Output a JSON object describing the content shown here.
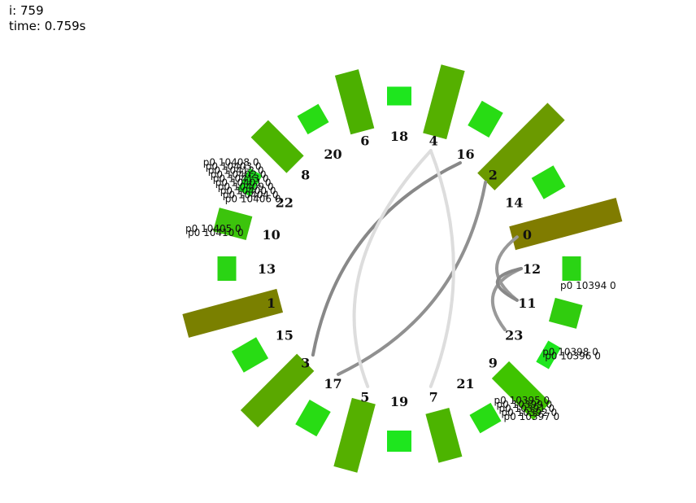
{
  "hud": {
    "iteration_text": "i: 759",
    "time_text": "time: 0.759s"
  },
  "nodes": [
    {
      "id": "18",
      "bar": {
        "level": 0.23,
        "color": "#1ee61e"
      }
    },
    {
      "id": "4",
      "bar": {
        "level": 0.87,
        "color": "#55b000"
      }
    },
    {
      "id": "16",
      "bar": {
        "level": 0.35,
        "color": "#28dc14"
      }
    },
    {
      "id": "2",
      "bar": {
        "level": 1.22,
        "color": "#6b9a00"
      }
    },
    {
      "id": "14",
      "bar": {
        "level": 0.31,
        "color": "#28dc14"
      }
    },
    {
      "id": "0",
      "bar": {
        "level": 1.36,
        "color": "#807c00"
      }
    },
    {
      "id": "12",
      "bar": {
        "level": 0.23,
        "color": "#2ad414"
      }
    },
    {
      "id": "11",
      "bar": {
        "level": 0.35,
        "color": "#30cc0e"
      }
    },
    {
      "id": "23",
      "bar": {
        "level": 0.08,
        "color": "#1ee61e"
      }
    },
    {
      "id": "9",
      "bar": {
        "level": 0.72,
        "color": "#3fc400"
      }
    },
    {
      "id": "21",
      "bar": {
        "level": 0.26,
        "color": "#28dc14"
      }
    },
    {
      "id": "7",
      "bar": {
        "level": 0.62,
        "color": "#4cb400"
      }
    },
    {
      "id": "19",
      "bar": {
        "level": 0.26,
        "color": "#1ee61e"
      }
    },
    {
      "id": "5",
      "bar": {
        "level": 0.87,
        "color": "#55b000"
      }
    },
    {
      "id": "17",
      "bar": {
        "level": 0.35,
        "color": "#28dc14"
      }
    },
    {
      "id": "3",
      "bar": {
        "level": 0.98,
        "color": "#5aa800"
      }
    },
    {
      "id": "15",
      "bar": {
        "level": 0.35,
        "color": "#28dc14"
      }
    },
    {
      "id": "1",
      "bar": {
        "level": 1.2,
        "color": "#7a8000"
      }
    },
    {
      "id": "13",
      "bar": {
        "level": 0.23,
        "color": "#2ad414"
      }
    },
    {
      "id": "10",
      "bar": {
        "level": 0.42,
        "color": "#3cc40c"
      }
    },
    {
      "id": "22",
      "bar": {
        "level": 0.16,
        "color": "#1ee61e"
      }
    },
    {
      "id": "8",
      "bar": {
        "level": 0.62,
        "color": "#4cb400"
      }
    },
    {
      "id": "20",
      "bar": {
        "level": 0.26,
        "color": "#28dc14"
      }
    },
    {
      "id": "6",
      "bar": {
        "level": 0.75,
        "color": "#4cb000"
      }
    }
  ],
  "links": [
    {
      "source": "3",
      "target": "16",
      "color": "#888888"
    },
    {
      "source": "17",
      "target": "2",
      "color": "#909090"
    },
    {
      "source": "5",
      "target": "4",
      "color": "#dddddd"
    },
    {
      "source": "7",
      "target": "4",
      "color": "#dddddd"
    },
    {
      "source": "0",
      "target": "11",
      "color": "#999999"
    },
    {
      "source": "12",
      "target": "23",
      "color": "#999999"
    },
    {
      "source": "11",
      "target": "12",
      "color": "#888888"
    }
  ],
  "packet_labels": [
    {
      "node": "22",
      "texts": [
        "p0 10408 0",
        "p0 10403 0",
        "p0 10412 0",
        "p0 10402 0",
        "p0 10413 0",
        "p0 10401 0",
        "p0 10409 0",
        "p0 10400 0",
        "p0 10404 0",
        "p0 10406 0"
      ]
    },
    {
      "node": "13",
      "texts": [
        "p0 10405 0",
        "p0 10410 0"
      ]
    },
    {
      "node": "12",
      "texts": [
        "p0 10394 0"
      ]
    },
    {
      "node": "23",
      "texts": [
        "p0 10398 0",
        "p0 10396 0"
      ]
    },
    {
      "node": "21",
      "texts": [
        "p0 10395 0",
        "p0 10399 0",
        "p0 10391 0",
        "p0 10392 0",
        "p0 10397 0"
      ]
    }
  ]
}
